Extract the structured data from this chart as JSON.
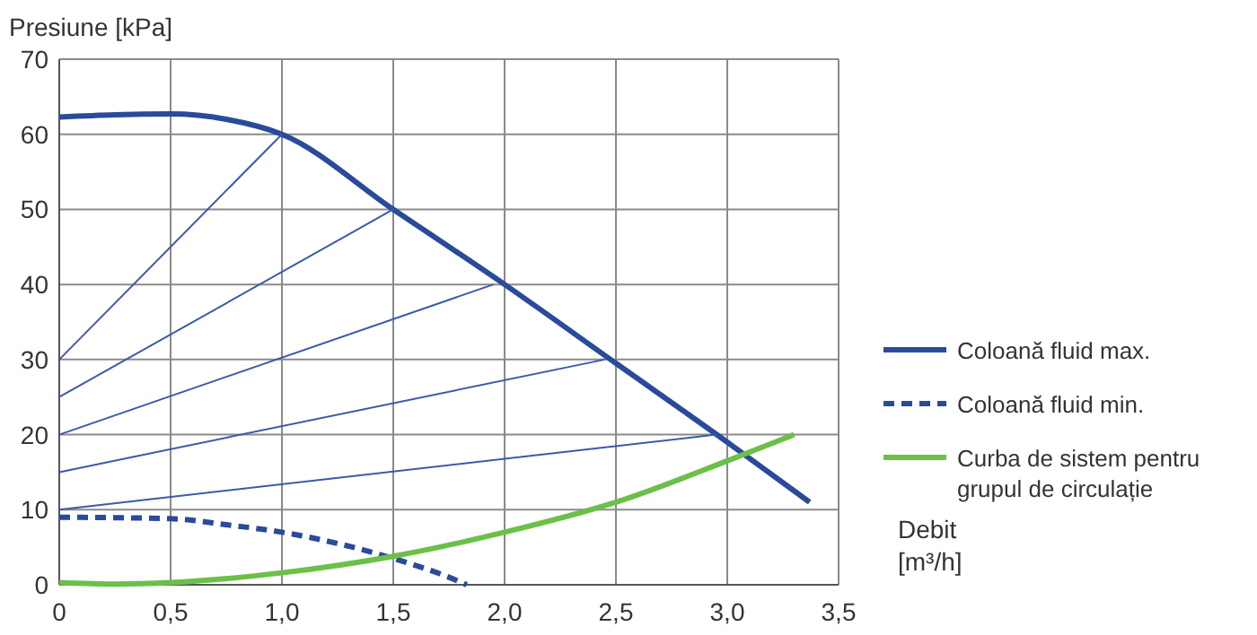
{
  "chart_data": {
    "type": "line",
    "ylabel": "Presiune [kPa]",
    "xlabel": "Debit [m³/h]",
    "xlim": [
      0,
      3.5
    ],
    "ylim": [
      0,
      70
    ],
    "xticks": [
      0,
      {
        "value": 0.5,
        "label": "0,5"
      },
      {
        "value": 1,
        "label": "1,0"
      },
      {
        "value": 1.5,
        "label": "1,5"
      },
      {
        "value": 2,
        "label": "2,0"
      },
      {
        "value": 2.5,
        "label": "2,5"
      },
      {
        "value": 3,
        "label": "3,0"
      },
      {
        "value": 3.5,
        "label": "3,5"
      }
    ],
    "yticks": [
      0,
      10,
      20,
      30,
      40,
      50,
      60,
      70
    ],
    "grid": true,
    "legend": "right",
    "series": [
      {
        "name": "Coloană fluid max.",
        "color": "#2a4a9a",
        "line_style": "solid",
        "x": [
          0,
          0.25,
          0.5,
          0.75,
          1.0,
          1.5,
          2.0,
          2.5,
          3.0,
          3.37
        ],
        "values": [
          62.3,
          62.6,
          62.7,
          62,
          60,
          50,
          40,
          29.5,
          19,
          11
        ]
      },
      {
        "name": "Coloană fluid min.",
        "color": "#2a4a9a",
        "line_style": "dashed",
        "x": [
          0,
          0.5,
          0.75,
          1.0,
          1.25,
          1.5,
          1.75,
          1.83
        ],
        "values": [
          9,
          8.8,
          8,
          7,
          5.5,
          3.5,
          1,
          0
        ]
      },
      {
        "name": "Curba de sistem pentru grupul de circulație",
        "color": "#6cc04a",
        "line_style": "solid",
        "x": [
          0,
          0.25,
          0.5,
          1.0,
          1.5,
          2.0,
          2.5,
          3.0,
          3.3
        ],
        "values": [
          0.3,
          0.1,
          0.3,
          1.6,
          3.8,
          7,
          11,
          16.5,
          20
        ]
      },
      {
        "color": "#3a5aa8",
        "line_style": "solid",
        "x": [
          0,
          1
        ],
        "values": [
          30,
          60
        ]
      },
      {
        "color": "#3a5aa8",
        "line_style": "solid",
        "x": [
          0,
          1.5
        ],
        "values": [
          25,
          50
        ]
      },
      {
        "color": "#3a5aa8",
        "line_style": "solid",
        "x": [
          0,
          1.95
        ],
        "values": [
          20,
          40
        ]
      },
      {
        "color": "#3a5aa8",
        "line_style": "solid",
        "x": [
          0,
          2.45
        ],
        "values": [
          15,
          30
        ]
      },
      {
        "color": "#3a5aa8",
        "line_style": "solid",
        "x": [
          0,
          2.95
        ],
        "values": [
          10,
          20
        ]
      }
    ]
  }
}
